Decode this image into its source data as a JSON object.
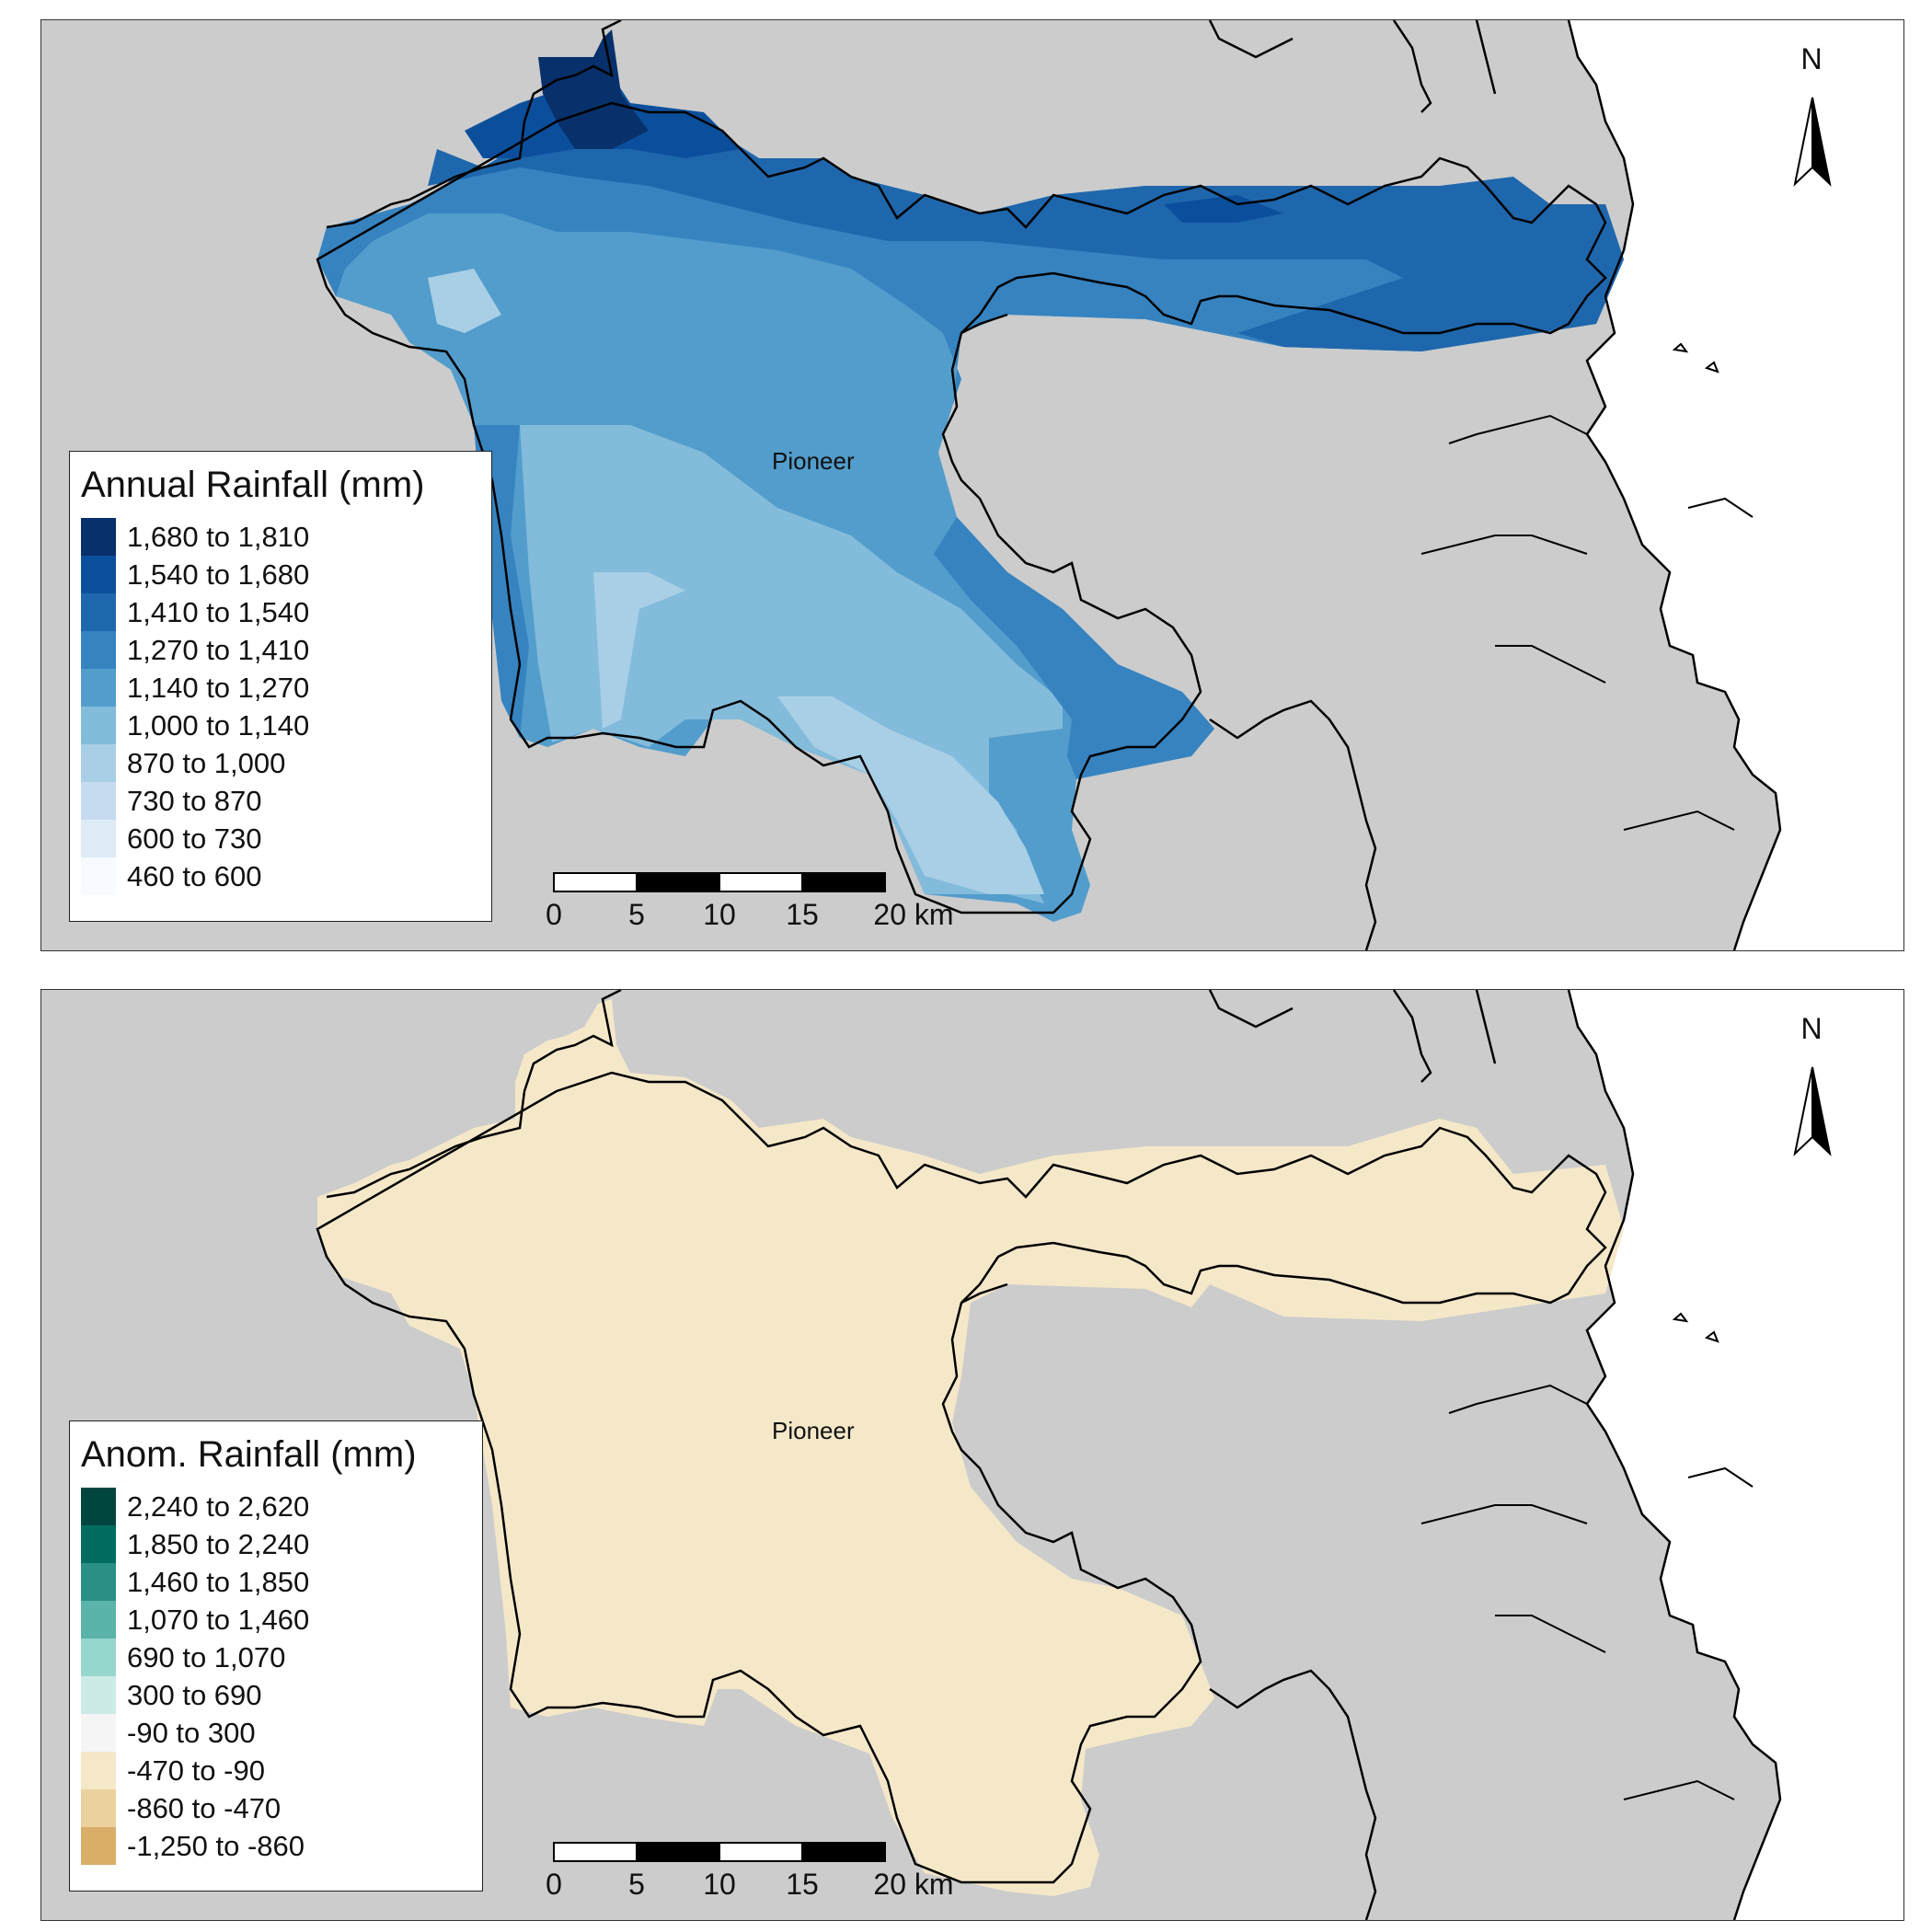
{
  "panels": [
    {
      "legend_title": "Annual Rainfall (mm)",
      "legend_items": [
        {
          "label": "1,680 to 1,810",
          "color": "#08306b"
        },
        {
          "label": "1,540 to 1,680",
          "color": "#0b4f9c"
        },
        {
          "label": "1,410 to 1,540",
          "color": "#1f67ad"
        },
        {
          "label": "1,270 to 1,410",
          "color": "#3683c0"
        },
        {
          "label": "1,140 to 1,270",
          "color": "#529dcc"
        },
        {
          "label": "1,000 to 1,140",
          "color": "#83bbdb"
        },
        {
          "label": "870 to 1,000",
          "color": "#a9cfe6"
        },
        {
          "label": "730 to 870",
          "color": "#c6dbef"
        },
        {
          "label": "600 to 730",
          "color": "#deebf7"
        },
        {
          "label": "460 to 600",
          "color": "#f7fbff"
        }
      ],
      "place_label": "Pioneer",
      "north_label": "N",
      "scale_labels": [
        "0",
        "5",
        "10",
        "15",
        "20 km"
      ]
    },
    {
      "legend_title": "Anom. Rainfall (mm)",
      "legend_items": [
        {
          "label": "2,240 to 2,620",
          "color": "#01463e"
        },
        {
          "label": "1,850 to 2,240",
          "color": "#016c5f"
        },
        {
          "label": "1,460 to 1,850",
          "color": "#2a8f84"
        },
        {
          "label": "1,070 to 1,460",
          "color": "#5ab4a9"
        },
        {
          "label": "690 to 1,070",
          "color": "#97d6cc"
        },
        {
          "label": "300 to 690",
          "color": "#cdebe6"
        },
        {
          "label": "-90 to 300",
          "color": "#f5f5f5"
        },
        {
          "label": "-470 to -90",
          "color": "#f5e8c9"
        },
        {
          "label": "-860 to -470",
          "color": "#ebd19e"
        },
        {
          "label": "-1,250 to -860",
          "color": "#d8ae69"
        }
      ],
      "place_label": "Pioneer",
      "north_label": "N",
      "scale_labels": [
        "0",
        "5",
        "10",
        "15",
        "20 km"
      ]
    }
  ],
  "colors": {
    "land": "#cccccc",
    "sea": "#ffffff",
    "boundary": "#000000",
    "anomaly_fill": "#f5e8c9"
  }
}
